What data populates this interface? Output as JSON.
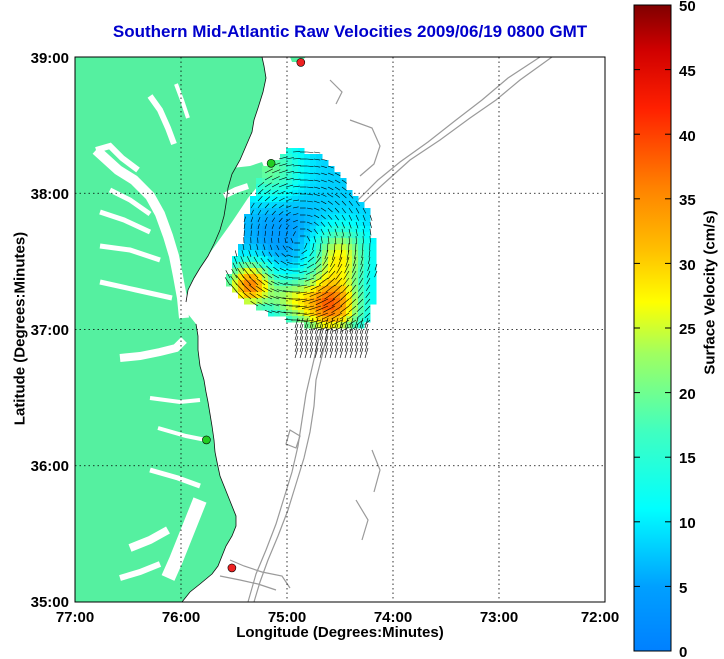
{
  "title": "Southern Mid-Atlantic Raw Velocities 2009/06/19 0800 GMT",
  "x_axis": {
    "label": "Longitude (Degrees:Minutes)",
    "ticks": [
      "77:00",
      "76:00",
      "75:00",
      "74:00",
      "73:00",
      "72:00"
    ]
  },
  "y_axis": {
    "label": "Latitude (Degrees:Minutes)",
    "ticks": [
      "39:00",
      "38:00",
      "37:00",
      "36:00",
      "35:00"
    ]
  },
  "colorbar": {
    "label": "Surface Velocity (cm/s)",
    "ticks": [
      "50",
      "45",
      "40",
      "35",
      "30",
      "25",
      "20",
      "15",
      "10",
      "5",
      "0"
    ],
    "range": [
      0,
      50
    ],
    "colormap": "jet"
  },
  "colors": {
    "land": "#55f0a0",
    "water": "#ffffff",
    "title": "#0000cc",
    "bathymetry": "#9a9a9a",
    "station_active": "#22cc22",
    "station_inactive": "#ee2222"
  },
  "map": {
    "lon_range": [
      -77,
      -72
    ],
    "lat_range": [
      35,
      39
    ],
    "grid": "dotted"
  },
  "stations": [
    {
      "lon": -74.87,
      "lat": 38.96,
      "status": "inactive"
    },
    {
      "lon": -75.15,
      "lat": 38.22,
      "status": "active"
    },
    {
      "lon": -75.76,
      "lat": 36.19,
      "status": "active"
    },
    {
      "lon": -75.52,
      "lat": 35.25,
      "status": "inactive"
    }
  ]
}
